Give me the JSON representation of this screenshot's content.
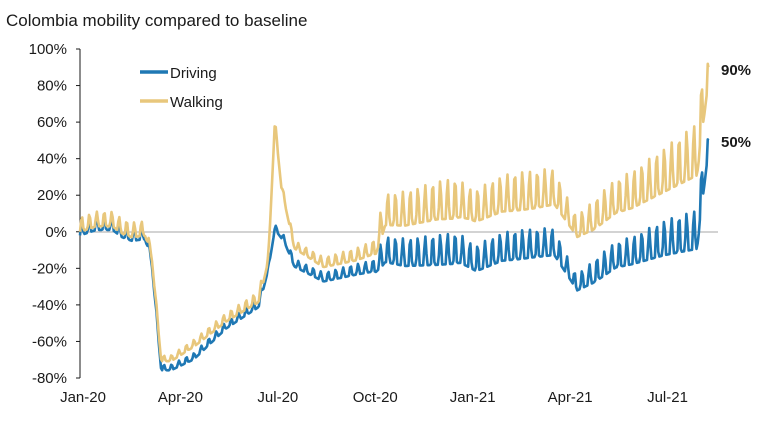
{
  "chart_data": {
    "type": "line",
    "title": "Colombia mobility compared to baseline",
    "xlabel": "",
    "ylabel": "",
    "ylim": [
      -80,
      100
    ],
    "y_ticks": [
      "100%",
      "80%",
      "60%",
      "40%",
      "20%",
      "0%",
      "-20%",
      "-40%",
      "-60%",
      "-80%"
    ],
    "y_tick_values": [
      100,
      80,
      60,
      40,
      20,
      0,
      -20,
      -40,
      -60,
      -80
    ],
    "x_range": [
      0,
      19.4
    ],
    "x_ticks": [
      "Jan-20",
      "Apr-20",
      "Jul-20",
      "Oct-20",
      "Jan-21",
      "Apr-21",
      "Jul-21"
    ],
    "x_tick_values": [
      0,
      3,
      6,
      9,
      12,
      15,
      18
    ],
    "legend_position": "top-left",
    "grid": false,
    "series": [
      {
        "name": "Driving",
        "color": "#1f78b4",
        "end_label": "50%",
        "anchors": [
          [
            0,
            0
          ],
          [
            0.5,
            3
          ],
          [
            1.0,
            3
          ],
          [
            1.3,
            -1
          ],
          [
            1.6,
            -3
          ],
          [
            2.0,
            -2
          ],
          [
            2.2,
            -15
          ],
          [
            2.5,
            -75
          ],
          [
            2.8,
            -75
          ],
          [
            3.5,
            -69
          ],
          [
            4.5,
            -52
          ],
          [
            5.5,
            -40
          ],
          [
            5.8,
            -20
          ],
          [
            6.0,
            2
          ],
          [
            6.3,
            -5
          ],
          [
            6.6,
            -18
          ],
          [
            7.5,
            -26
          ],
          [
            8.5,
            -22
          ],
          [
            9.1,
            -20
          ],
          [
            9.4,
            -13
          ],
          [
            10.0,
            -15
          ],
          [
            11.0,
            -14
          ],
          [
            11.7,
            -13
          ],
          [
            12.2,
            -18
          ],
          [
            13.0,
            -12
          ],
          [
            14.0,
            -10
          ],
          [
            14.6,
            -9
          ],
          [
            15.3,
            -30
          ],
          [
            15.8,
            -25
          ],
          [
            16.5,
            -16
          ],
          [
            17.0,
            -14
          ],
          [
            18.0,
            -8
          ],
          [
            19.0,
            -4
          ],
          [
            19.35,
            50
          ]
        ],
        "swings": [
          [
            0,
            8
          ],
          [
            2.0,
            8
          ],
          [
            2.2,
            3
          ],
          [
            2.5,
            3
          ],
          [
            5.0,
            4
          ],
          [
            5.6,
            5
          ],
          [
            5.8,
            2
          ],
          [
            6.5,
            4
          ],
          [
            8.8,
            6
          ],
          [
            9.0,
            6
          ],
          [
            9.3,
            14
          ],
          [
            11.5,
            17
          ],
          [
            12.0,
            14
          ],
          [
            13.5,
            16
          ],
          [
            14.5,
            15
          ],
          [
            15.2,
            8
          ],
          [
            16.0,
            13
          ],
          [
            17.0,
            15
          ],
          [
            18.0,
            19
          ],
          [
            19.3,
            22
          ]
        ]
      },
      {
        "name": "Walking",
        "color": "#e8c77c",
        "end_label": "90%",
        "anchors": [
          [
            0,
            2
          ],
          [
            0.5,
            5
          ],
          [
            1.0,
            5
          ],
          [
            1.3,
            1
          ],
          [
            1.6,
            -1
          ],
          [
            2.0,
            0
          ],
          [
            2.2,
            -12
          ],
          [
            2.5,
            -70
          ],
          [
            2.8,
            -70
          ],
          [
            3.5,
            -62
          ],
          [
            4.5,
            -48
          ],
          [
            5.5,
            -37
          ],
          [
            5.8,
            -15
          ],
          [
            6.0,
            60
          ],
          [
            6.2,
            25
          ],
          [
            6.6,
            -8
          ],
          [
            7.5,
            -18
          ],
          [
            8.5,
            -14
          ],
          [
            9.1,
            -10
          ],
          [
            9.4,
            8
          ],
          [
            10.0,
            8
          ],
          [
            11.0,
            12
          ],
          [
            11.7,
            13
          ],
          [
            12.2,
            10
          ],
          [
            13.0,
            16
          ],
          [
            14.0,
            18
          ],
          [
            14.6,
            20
          ],
          [
            15.3,
            0
          ],
          [
            15.8,
            5
          ],
          [
            16.5,
            15
          ],
          [
            17.0,
            18
          ],
          [
            18.0,
            28
          ],
          [
            19.0,
            38
          ],
          [
            19.35,
            90
          ]
        ],
        "swings": [
          [
            0,
            8
          ],
          [
            2.0,
            8
          ],
          [
            2.2,
            3
          ],
          [
            2.5,
            3
          ],
          [
            5.0,
            5
          ],
          [
            5.6,
            6
          ],
          [
            5.8,
            3
          ],
          [
            6.2,
            3
          ],
          [
            6.5,
            4
          ],
          [
            8.8,
            7
          ],
          [
            9.0,
            7
          ],
          [
            9.3,
            17
          ],
          [
            11.5,
            22
          ],
          [
            12.0,
            17
          ],
          [
            13.5,
            21
          ],
          [
            14.5,
            20
          ],
          [
            15.2,
            11
          ],
          [
            16.0,
            17
          ],
          [
            17.0,
            20
          ],
          [
            18.0,
            24
          ],
          [
            19.3,
            30
          ]
        ]
      }
    ]
  }
}
